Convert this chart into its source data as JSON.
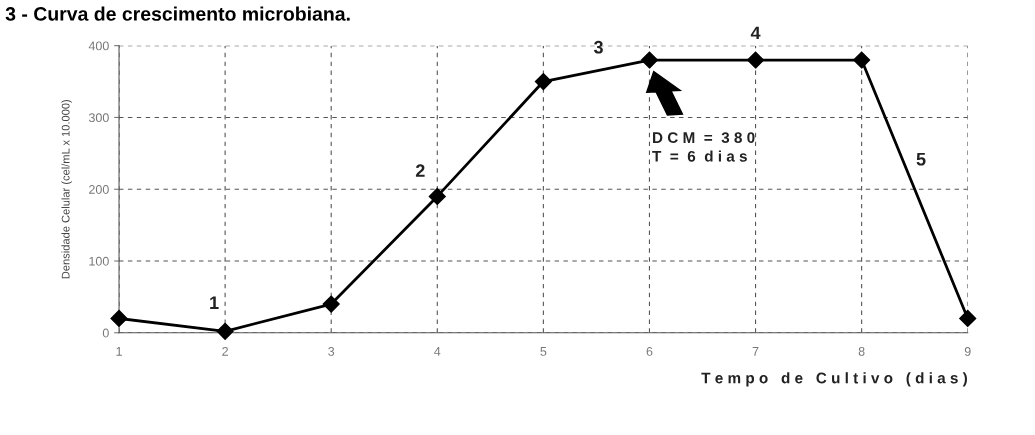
{
  "chart_data": {
    "type": "line",
    "title": "3 - Curva de crescimento microbiana.",
    "xlabel": "T e m p o   d e   C u l t i v o   ( d i a s )",
    "ylabel": "Densidade Celular (cel/mL x 10.000)",
    "x": [
      1,
      2,
      3,
      4,
      5,
      6,
      7,
      8,
      9
    ],
    "series": [
      {
        "color": "#000000",
        "values": [
          20,
          2,
          40,
          190,
          350,
          380,
          380,
          380,
          20
        ]
      }
    ],
    "xlim": [
      1,
      9
    ],
    "xticks": [
      1,
      2,
      3,
      4,
      5,
      6,
      7,
      8,
      9
    ],
    "ylim": [
      0,
      400
    ],
    "yticks": [
      0,
      100,
      200,
      300,
      400
    ],
    "grid": true,
    "marker": "diamond",
    "line_style": "solid",
    "annotations": [
      "1",
      "2",
      "3",
      "4",
      "5",
      "D C M  =  3 8 0\nT  =  6  d i a s"
    ]
  }
}
